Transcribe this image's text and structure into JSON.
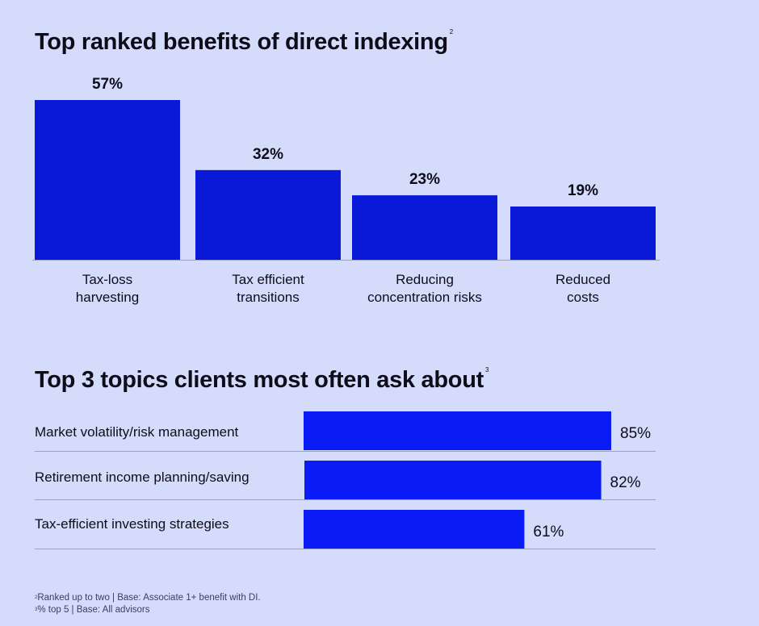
{
  "colors": {
    "background": "#d4dbfb",
    "bar_dark": "#0a19d8",
    "bar_bright": "#0a1cf5",
    "text": "#0d0d1a",
    "rule": "#9aa0c0"
  },
  "titles": {
    "chart1": "Top ranked benefits of direct indexing",
    "chart1_note": "2",
    "chart2": "Top 3 topics clients most often ask about",
    "chart2_note": "3"
  },
  "footnotes": {
    "note1_mark": "2",
    "note1_text": "Ranked up to two | Base: Associate 1+ benefit with DI.",
    "note2_mark": "3",
    "note2_text": "% top 5 | Base: All advisors"
  },
  "chart_data": [
    {
      "type": "bar",
      "orientation": "vertical",
      "title": "Top ranked benefits of direct indexing",
      "categories": [
        [
          "Tax-loss",
          "harvesting"
        ],
        [
          "Tax efficient",
          "transitions"
        ],
        [
          "Reducing",
          "concentration risks"
        ],
        [
          "Reduced",
          "costs"
        ]
      ],
      "values": [
        57,
        32,
        23,
        19
      ],
      "value_labels": [
        "57%",
        "32%",
        "23%",
        "19%"
      ],
      "unit": "%",
      "ylim": [
        0,
        57
      ],
      "grid": false,
      "legend": "none"
    },
    {
      "type": "bar",
      "orientation": "horizontal",
      "title": "Top 3 topics clients most often ask about",
      "categories": [
        "Market volatility/risk management",
        "Retirement income planning/saving",
        "Tax-efficient investing strategies"
      ],
      "values": [
        85,
        82,
        61
      ],
      "value_labels": [
        "85%",
        "82%",
        "61%"
      ],
      "unit": "%",
      "xlim": [
        0,
        85
      ],
      "grid": false,
      "legend": "none"
    }
  ]
}
